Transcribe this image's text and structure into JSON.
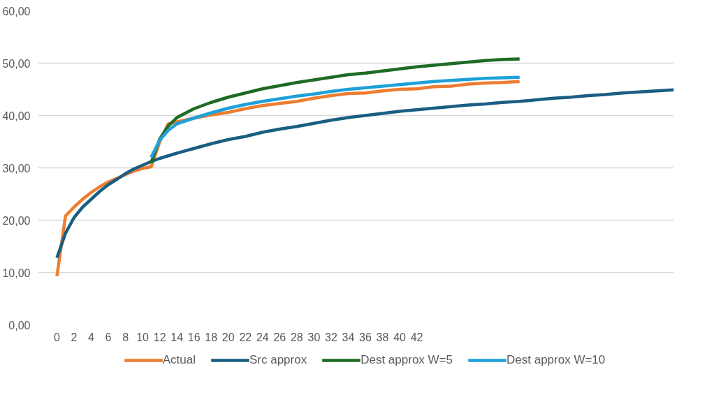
{
  "chart_data": {
    "type": "line",
    "xlim": [
      -2.2,
      72
    ],
    "xticks": [
      0,
      2,
      4,
      6,
      8,
      10,
      12,
      14,
      16,
      18,
      20,
      22,
      24,
      26,
      28,
      30,
      32,
      34,
      36,
      38,
      40,
      42
    ],
    "ylim": [
      0,
      60
    ],
    "yticks": [
      {
        "value": 0,
        "label": "0,00"
      },
      {
        "value": 10,
        "label": "10,00"
      },
      {
        "value": 20,
        "label": "20,00"
      },
      {
        "value": 30,
        "label": "30,00"
      },
      {
        "value": 40,
        "label": "40,00"
      },
      {
        "value": 50,
        "label": "50,00"
      },
      {
        "value": 60,
        "label": "60,00"
      }
    ],
    "grid": "y",
    "legend": "bottom",
    "series": [
      {
        "name": "Actual",
        "color": "#ed7d31",
        "x": [
          0,
          1,
          2,
          3,
          4,
          5,
          6,
          7,
          8,
          9,
          10,
          11,
          12,
          13,
          14,
          16,
          18,
          20,
          22,
          24,
          26,
          28,
          30,
          32,
          34,
          36,
          38,
          40,
          42,
          44,
          46,
          48,
          50,
          52,
          54
        ],
        "values": [
          9.3,
          20.8,
          22.5,
          24.0,
          25.3,
          26.4,
          27.3,
          28.0,
          28.7,
          29.4,
          29.9,
          30.2,
          35.0,
          38.4,
          38.8,
          39.5,
          40.1,
          40.6,
          41.3,
          41.9,
          42.3,
          42.7,
          43.3,
          43.8,
          44.2,
          44.3,
          44.7,
          45.0,
          45.1,
          45.5,
          45.6,
          46.0,
          46.2,
          46.3,
          46.5
        ]
      },
      {
        "name": "Src approx",
        "color": "#1a5e82",
        "x": [
          0,
          1,
          2,
          3,
          4,
          5,
          6,
          7,
          8,
          9,
          10,
          11,
          12,
          14,
          16,
          18,
          20,
          22,
          24,
          26,
          28,
          30,
          32,
          34,
          36,
          38,
          40,
          42,
          44,
          46,
          48,
          50,
          52,
          54,
          56,
          58,
          60,
          62,
          64,
          66,
          68,
          70,
          72
        ],
        "values": [
          12.8,
          17.5,
          20.5,
          22.5,
          24.0,
          25.5,
          26.8,
          27.8,
          28.9,
          29.8,
          30.5,
          31.2,
          31.8,
          32.8,
          33.7,
          34.6,
          35.4,
          36.0,
          36.8,
          37.4,
          37.9,
          38.5,
          39.1,
          39.6,
          40.0,
          40.4,
          40.8,
          41.1,
          41.4,
          41.7,
          42.0,
          42.2,
          42.5,
          42.7,
          43.0,
          43.3,
          43.5,
          43.8,
          44.0,
          44.3,
          44.5,
          44.7,
          44.9
        ]
      },
      {
        "name": "Dest approx W=5",
        "color": "#1e6b24",
        "x": [
          11,
          12,
          13,
          14,
          16,
          18,
          20,
          22,
          24,
          26,
          28,
          30,
          32,
          34,
          36,
          38,
          40,
          42,
          44,
          46,
          48,
          50,
          52,
          54
        ],
        "values": [
          31.0,
          35.5,
          38.0,
          39.6,
          41.3,
          42.5,
          43.5,
          44.3,
          45.1,
          45.7,
          46.3,
          46.8,
          47.3,
          47.8,
          48.1,
          48.5,
          48.9,
          49.3,
          49.6,
          49.9,
          50.2,
          50.5,
          50.7,
          50.8
        ]
      },
      {
        "name": "Dest approx W=10",
        "color": "#1ea0d8",
        "x": [
          11,
          12,
          13,
          14,
          16,
          18,
          20,
          22,
          24,
          26,
          28,
          30,
          32,
          34,
          36,
          38,
          40,
          42,
          44,
          46,
          48,
          50,
          52,
          54
        ],
        "values": [
          32.0,
          35.3,
          37.2,
          38.4,
          39.5,
          40.5,
          41.4,
          42.1,
          42.7,
          43.2,
          43.7,
          44.1,
          44.6,
          45.0,
          45.3,
          45.6,
          45.9,
          46.2,
          46.5,
          46.7,
          46.9,
          47.1,
          47.2,
          47.3
        ]
      }
    ]
  }
}
